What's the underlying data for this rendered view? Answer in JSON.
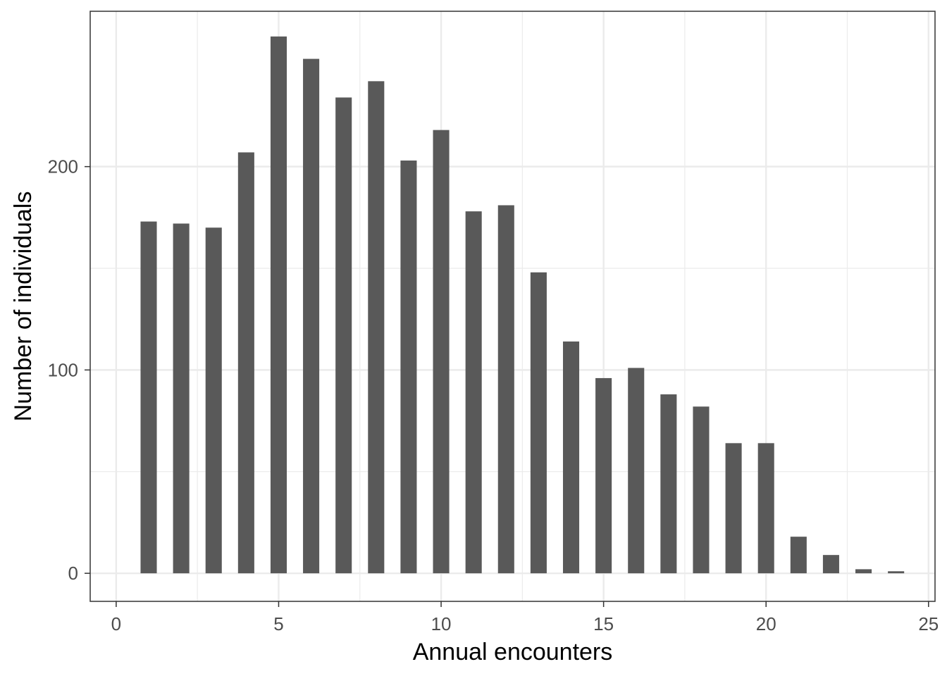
{
  "chart_data": {
    "type": "bar",
    "xlabel": "Annual encounters",
    "ylabel": "Number of individuals",
    "x": [
      1,
      2,
      3,
      4,
      5,
      6,
      7,
      8,
      9,
      10,
      11,
      12,
      13,
      14,
      15,
      16,
      17,
      18,
      19,
      20,
      21,
      22,
      23,
      24
    ],
    "values": [
      173,
      172,
      170,
      207,
      264,
      253,
      234,
      242,
      203,
      218,
      178,
      181,
      148,
      114,
      96,
      101,
      88,
      82,
      64,
      64,
      18,
      9,
      2,
      1
    ],
    "xlim": [
      -0.8,
      25.2
    ],
    "ylim": [
      -13.8,
      276.4
    ],
    "x_ticks": [
      0,
      5,
      10,
      15,
      20,
      25
    ],
    "y_ticks": [
      0,
      100,
      200
    ],
    "grid": true,
    "colors": {
      "bar": "#595959",
      "grid": "#ebebeb",
      "border": "#333333"
    }
  }
}
